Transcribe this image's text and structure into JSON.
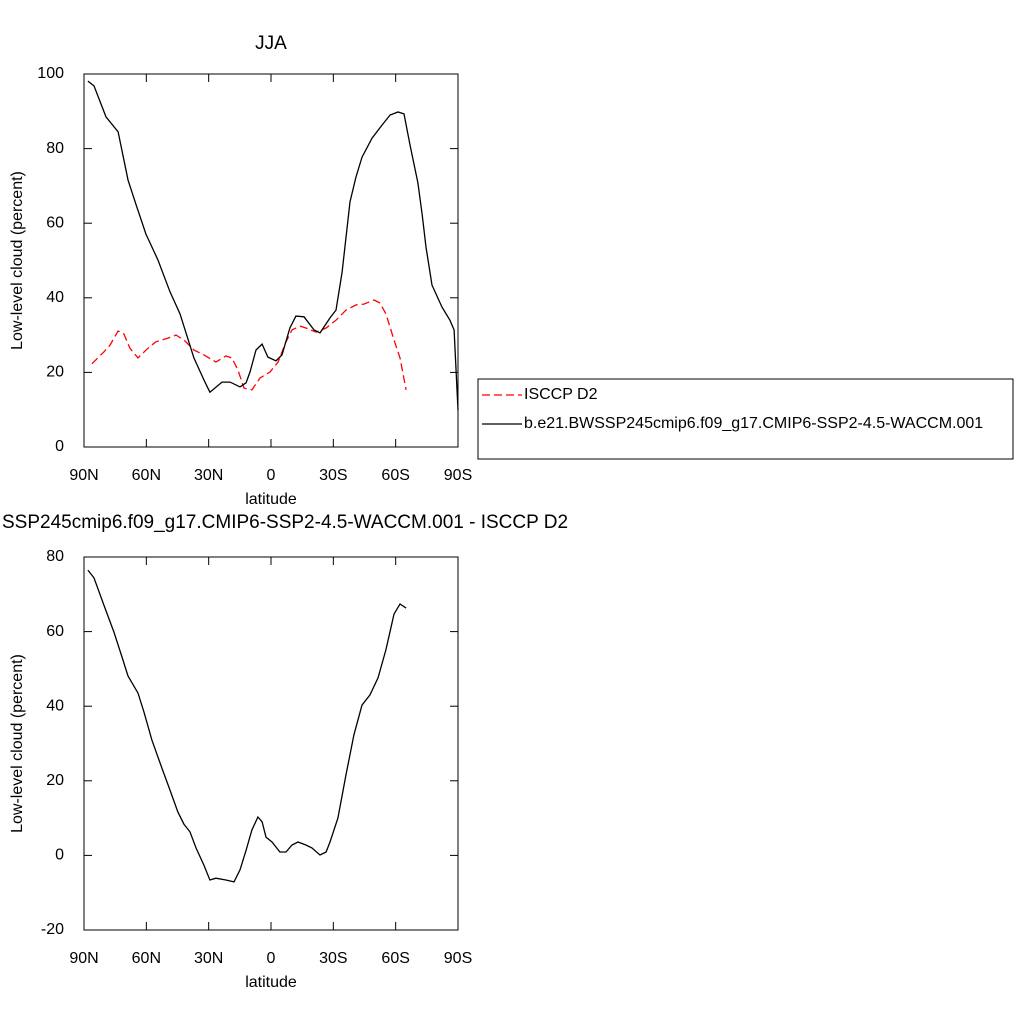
{
  "chart_data": [
    {
      "type": "line",
      "title": "JJA",
      "xlabel": "latitude",
      "ylabel": "Low-level cloud (percent)",
      "xlim": [
        90,
        -90
      ],
      "xticks": [
        {
          "value": 90,
          "label": "90N"
        },
        {
          "value": 60,
          "label": "60N"
        },
        {
          "value": 30,
          "label": "30N"
        },
        0,
        {
          "value": -30,
          "label": "30S"
        },
        {
          "value": -60,
          "label": "60S"
        },
        {
          "value": -90,
          "label": "90S"
        }
      ],
      "ylim": [
        0,
        100
      ],
      "yticks": [
        0,
        20,
        40,
        60,
        80,
        100
      ],
      "legend": "right-outside",
      "series": [
        {
          "name": "ISCCP D2",
          "color": "#ff0000",
          "dashed": true,
          "x": [
            86.2,
            80.4,
            77.5,
            73.6,
            70.8,
            67.9,
            64.0,
            59.2,
            55.4,
            49.6,
            45.7,
            41.9,
            37.1,
            32.3,
            26.5,
            21.7,
            18.8,
            15.9,
            13.0,
            9.2,
            5.3,
            0.5,
            -3.4,
            -7.2,
            -10.1,
            -14.0,
            -16.8,
            -21.7,
            -26.5,
            -31.3,
            -36.1,
            -40.9,
            -44.7,
            -49.6,
            -52.4,
            -55.3,
            -59.2,
            -62.1,
            -65.0
          ],
          "values": [
            22.3,
            25.5,
            27.3,
            31.1,
            30.3,
            26.5,
            23.9,
            26.5,
            28.2,
            29.2,
            30.0,
            28.7,
            26.0,
            24.7,
            22.8,
            24.4,
            23.9,
            20.6,
            15.8,
            15.3,
            18.5,
            20.1,
            22.8,
            28.2,
            31.4,
            32.4,
            31.9,
            30.8,
            31.9,
            34.0,
            36.7,
            38.1,
            38.3,
            39.4,
            38.6,
            35.7,
            28.7,
            23.9,
            15.3
          ]
        },
        {
          "name": "b.e21.BWSSP245cmip6.f09_g17.CMIP6-SSP2-4.5-WACCM.001",
          "color": "#000000",
          "dashed": false,
          "x": [
            88.1,
            85.2,
            79.4,
            73.6,
            68.8,
            65.0,
            60.2,
            54.4,
            48.6,
            43.8,
            37.1,
            32.3,
            29.4,
            23.6,
            19.7,
            14.9,
            12.0,
            10.1,
            7.2,
            4.3,
            1.5,
            -2.4,
            -5.3,
            -9.1,
            -12.0,
            -15.9,
            -20.7,
            -23.6,
            -28.4,
            -31.3,
            -34.2,
            -38.0,
            -40.9,
            -43.8,
            -48.6,
            -53.4,
            -57.3,
            -61.1,
            -64.0,
            -66.9,
            -70.7,
            -72.7,
            -74.6,
            -77.5,
            -82.3,
            -86.1,
            -88.1,
            -90
          ],
          "values": [
            98.1,
            96.8,
            88.5,
            84.5,
            71.6,
            65.1,
            57.1,
            50.1,
            41.6,
            35.7,
            23.9,
            18.0,
            14.7,
            17.4,
            17.4,
            16.1,
            17.2,
            20.1,
            26.0,
            27.6,
            24.1,
            23.1,
            24.7,
            31.9,
            35.1,
            34.9,
            31.4,
            30.6,
            34.6,
            36.7,
            46.9,
            65.7,
            72.4,
            77.7,
            82.8,
            86.3,
            89.0,
            89.8,
            89.3,
            81.0,
            70.8,
            62.5,
            53.6,
            43.4,
            37.5,
            34.0,
            31.4,
            9.9
          ]
        }
      ]
    },
    {
      "type": "line",
      "title": "SSP245cmip6.f09_g17.CMIP6-SSP2-4.5-WACCM.001 - ISCCP D2",
      "xlabel": "latitude",
      "ylabel": "Low-level cloud (percent)",
      "xlim": [
        90,
        -90
      ],
      "xticks": [
        {
          "value": 90,
          "label": "90N"
        },
        {
          "value": 60,
          "label": "60N"
        },
        {
          "value": 30,
          "label": "30N"
        },
        0,
        {
          "value": -30,
          "label": "30S"
        },
        {
          "value": -60,
          "label": "60S"
        },
        {
          "value": -90,
          "label": "90S"
        }
      ],
      "ylim": [
        -20,
        80
      ],
      "yticks": [
        -20,
        0,
        20,
        40,
        60,
        80
      ],
      "series": [
        {
          "color": "#000000",
          "dashed": false,
          "x": [
            88.1,
            85.2,
            80.4,
            75.6,
            71.7,
            68.8,
            64.0,
            61.1,
            57.3,
            52.5,
            48.6,
            44.8,
            41.9,
            39.0,
            36.1,
            32.3,
            29.4,
            26.5,
            21.7,
            17.8,
            14.9,
            12.0,
            9.2,
            6.3,
            4.3,
            2.4,
            -0.5,
            -4.3,
            -7.2,
            -10.1,
            -13.0,
            -16.8,
            -19.7,
            -23.6,
            -26.5,
            -28.4,
            -32.2,
            -36.1,
            -39.9,
            -43.8,
            -47.6,
            -51.5,
            -55.3,
            -59.2,
            -62.1,
            -65.0
          ],
          "values": [
            76.5,
            74.4,
            67.1,
            59.9,
            53.2,
            48.1,
            43.5,
            38.4,
            30.9,
            23.4,
            17.5,
            11.6,
            8.4,
            6.3,
            2.0,
            -2.6,
            -6.6,
            -6.1,
            -6.6,
            -7.1,
            -3.9,
            1.4,
            6.8,
            10.3,
            9.0,
            4.9,
            3.6,
            0.9,
            0.9,
            2.8,
            3.6,
            2.8,
            2.0,
            0.1,
            0.9,
            3.6,
            10.0,
            21.6,
            32.3,
            40.3,
            43.0,
            47.6,
            55.1,
            64.7,
            67.4,
            66.3
          ]
        }
      ]
    }
  ]
}
